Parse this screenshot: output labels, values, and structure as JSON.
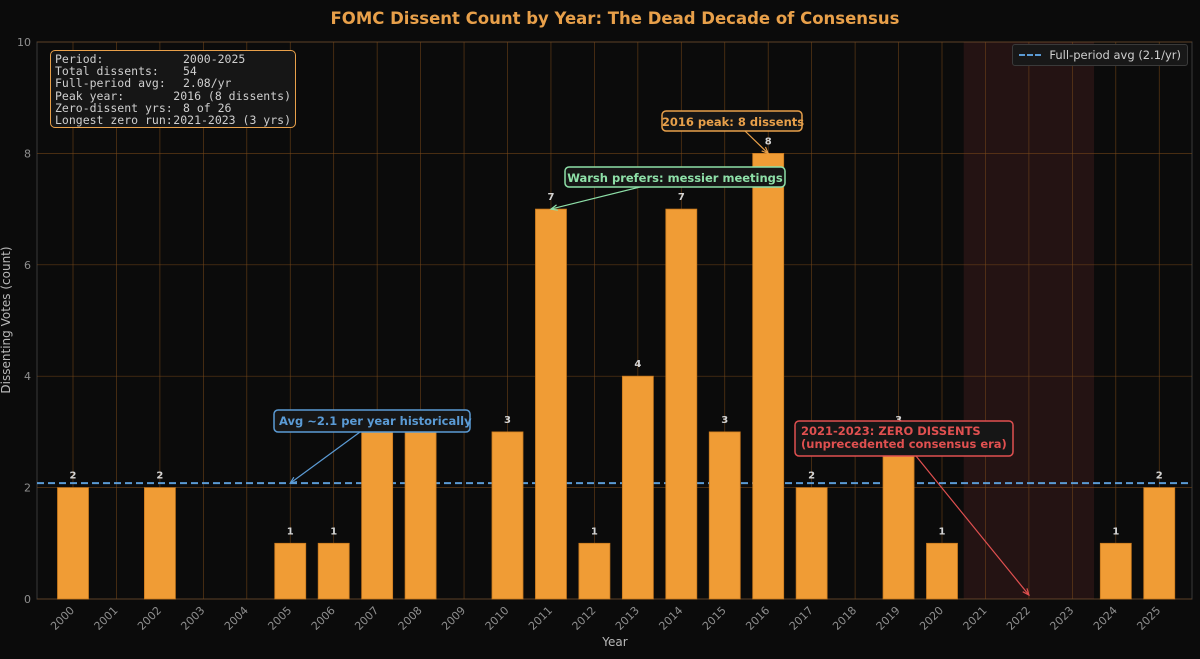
{
  "chart_data": {
    "type": "bar",
    "title": "FOMC Dissent Count by Year: The Dead Decade of Consensus",
    "xlabel": "Year",
    "ylabel": "Dissenting Votes (count)",
    "ylim": [
      0,
      10
    ],
    "yticks": [
      "0",
      "2",
      "4",
      "6",
      "8",
      "10"
    ],
    "categories": [
      "2000",
      "2001",
      "2002",
      "2003",
      "2004",
      "2005",
      "2006",
      "2007",
      "2008",
      "2009",
      "2010",
      "2011",
      "2012",
      "2013",
      "2014",
      "2015",
      "2016",
      "2017",
      "2018",
      "2019",
      "2020",
      "2021",
      "2022",
      "2023",
      "2024",
      "2025"
    ],
    "values": [
      2,
      0,
      2,
      0,
      0,
      1,
      1,
      3,
      3,
      0,
      3,
      7,
      1,
      4,
      7,
      3,
      8,
      2,
      0,
      3,
      1,
      0,
      0,
      0,
      1,
      2
    ],
    "data_labels": [
      "2",
      "",
      "2",
      "",
      "",
      "1",
      "1",
      "",
      "",
      "",
      "3",
      "7",
      "1",
      "4",
      "7",
      "3",
      "8",
      "2",
      "",
      "3",
      "1",
      "",
      "",
      "",
      "1",
      "2"
    ],
    "average": 2.08,
    "legend": {
      "label": "Full-period avg (2.1/yr)",
      "position": "top-right"
    },
    "shaded_range": [
      "2021",
      "2023"
    ],
    "grid": true,
    "colors": {
      "bar": "#f09c35",
      "avg_line": "#5b9bd5",
      "accent": "#e8a04a",
      "zero_era": "#e05050",
      "warsh": "#8ee0a8",
      "background": "#0b0b0b"
    },
    "annotations": [
      {
        "id": "peak",
        "text": "2016 peak: 8 dissents",
        "target": {
          "x": "2016",
          "y": 8
        },
        "color": "#e8a04a"
      },
      {
        "id": "warsh",
        "text": "Warsh prefers: messier meetings",
        "target": {
          "x": "2011",
          "y": 7
        },
        "color": "#8ee0a8"
      },
      {
        "id": "avg",
        "text": "Avg ~2.1 per year historically",
        "target": {
          "x": "2005",
          "y": 2.08
        },
        "color": "#5b9bd5"
      },
      {
        "id": "zero",
        "text": "2021-2023: ZERO DISSENTS",
        "text2": "(unprecedented consensus era)",
        "target": {
          "x": "2022",
          "y": 0
        },
        "color": "#e05050"
      }
    ],
    "info_box": [
      {
        "key": "Period:",
        "value": "2000-2025"
      },
      {
        "key": "Total dissents:",
        "value": "54"
      },
      {
        "key": "Full-period avg:",
        "value": "2.08/yr"
      },
      {
        "key": "Peak year:",
        "value": "2016 (8 dissents)"
      },
      {
        "key": "Zero-dissent yrs:",
        "value": "8 of 26"
      },
      {
        "key": "Longest zero run:",
        "value": "2021-2023 (3 yrs)"
      }
    ]
  }
}
